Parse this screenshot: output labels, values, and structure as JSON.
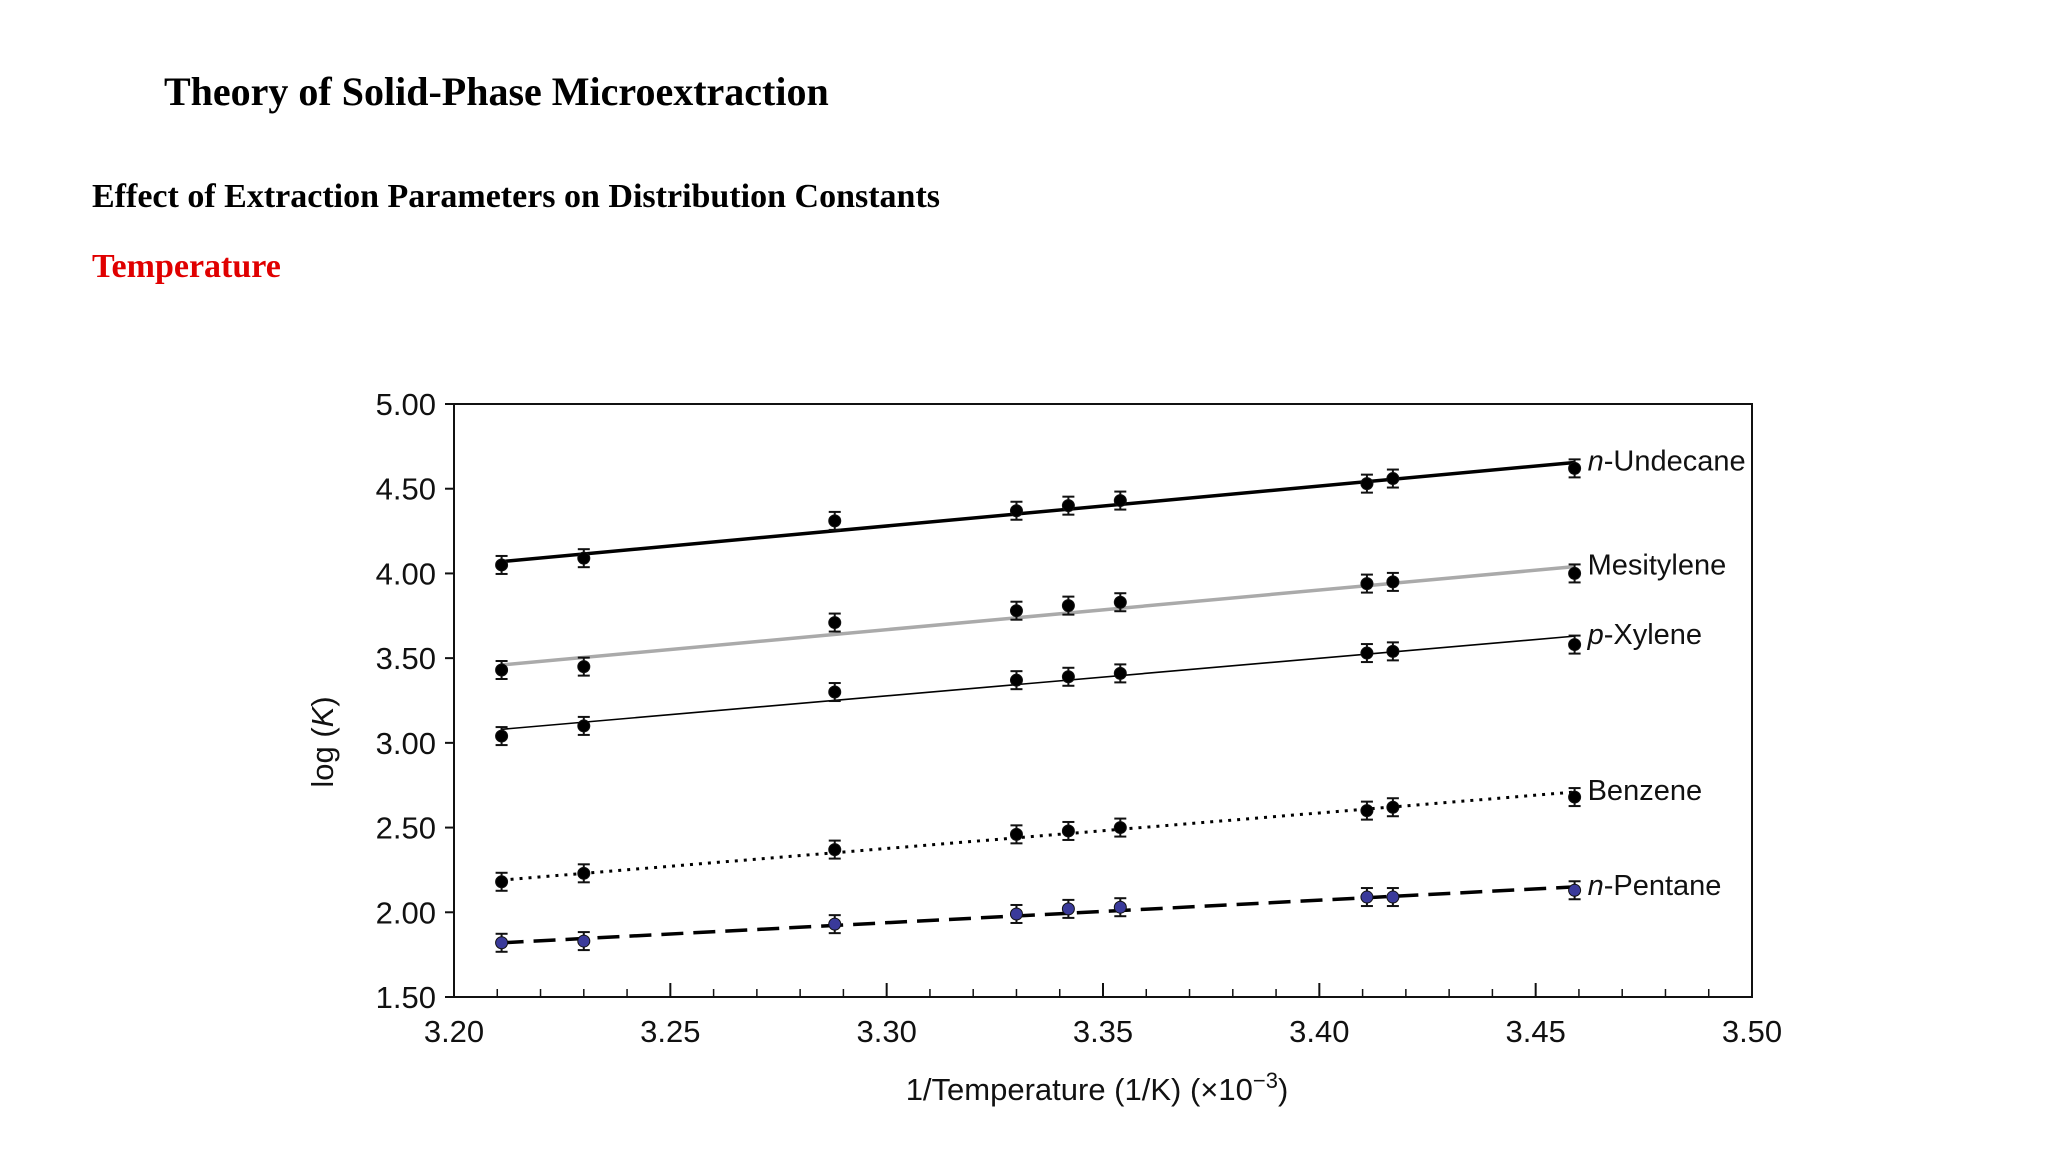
{
  "slide": {
    "title": "Theory of Solid-Phase Microextraction",
    "subtitle": "Effect of Extraction Parameters on Distribution Constants",
    "section": "Temperature"
  },
  "chart_data": {
    "type": "scatter",
    "title": "",
    "xlabel": "1/Temperature (1/K) (×10",
    "xlabel_exp": "−3",
    "xlabel_close": ")",
    "ylabel_prefix": "log (",
    "ylabel_var": "K",
    "ylabel_suffix": ")",
    "xlim": [
      3.2,
      3.5
    ],
    "ylim": [
      1.5,
      5.0
    ],
    "xticks": [
      "3.20",
      "3.25",
      "3.30",
      "3.35",
      "3.40",
      "3.45",
      "3.50"
    ],
    "yticks": [
      "1.50",
      "2.00",
      "2.50",
      "3.00",
      "3.50",
      "4.00",
      "4.50",
      "5.00"
    ],
    "grid": false,
    "legend": "labels at line ends (right)",
    "x": [
      3.211,
      3.23,
      3.288,
      3.33,
      3.342,
      3.354,
      3.411,
      3.417,
      3.459
    ],
    "series": [
      {
        "name": "n-Undecane",
        "label_italic": "n",
        "label_rest": "-Undecane",
        "line": "solid-thick",
        "color": "#000000",
        "marker_color": "#000000",
        "y": [
          4.05,
          4.09,
          4.31,
          4.37,
          4.4,
          4.43,
          4.53,
          4.56,
          4.62
        ],
        "fit": [
          4.07,
          4.655
        ]
      },
      {
        "name": "Mesitylene",
        "label_italic": "",
        "label_rest": "Mesitylene",
        "line": "solid-gray",
        "color": "#aaaaaa",
        "marker_color": "#000000",
        "y": [
          3.43,
          3.45,
          3.71,
          3.78,
          3.81,
          3.83,
          3.94,
          3.95,
          4.0
        ],
        "fit": [
          3.46,
          4.04
        ]
      },
      {
        "name": "p-Xylene",
        "label_italic": "p",
        "label_rest": "-Xylene",
        "line": "solid-thin",
        "color": "#000000",
        "marker_color": "#000000",
        "y": [
          3.04,
          3.1,
          3.3,
          3.37,
          3.39,
          3.41,
          3.53,
          3.54,
          3.58
        ],
        "fit": [
          3.08,
          3.63
        ]
      },
      {
        "name": "Benzene",
        "label_italic": "",
        "label_rest": "Benzene",
        "line": "dotted",
        "color": "#000000",
        "marker_color": "#000000",
        "y": [
          2.18,
          2.23,
          2.37,
          2.46,
          2.48,
          2.5,
          2.6,
          2.62,
          2.68
        ],
        "fit": [
          2.19,
          2.71
        ]
      },
      {
        "name": "n-Pentane",
        "label_italic": "n",
        "label_rest": "-Pentane",
        "line": "dashed",
        "color": "#000000",
        "marker_color": "#3a3a9a",
        "y": [
          1.82,
          1.83,
          1.93,
          1.99,
          2.02,
          2.03,
          2.09,
          2.09,
          2.13
        ],
        "fit": [
          1.82,
          2.15
        ]
      }
    ]
  }
}
